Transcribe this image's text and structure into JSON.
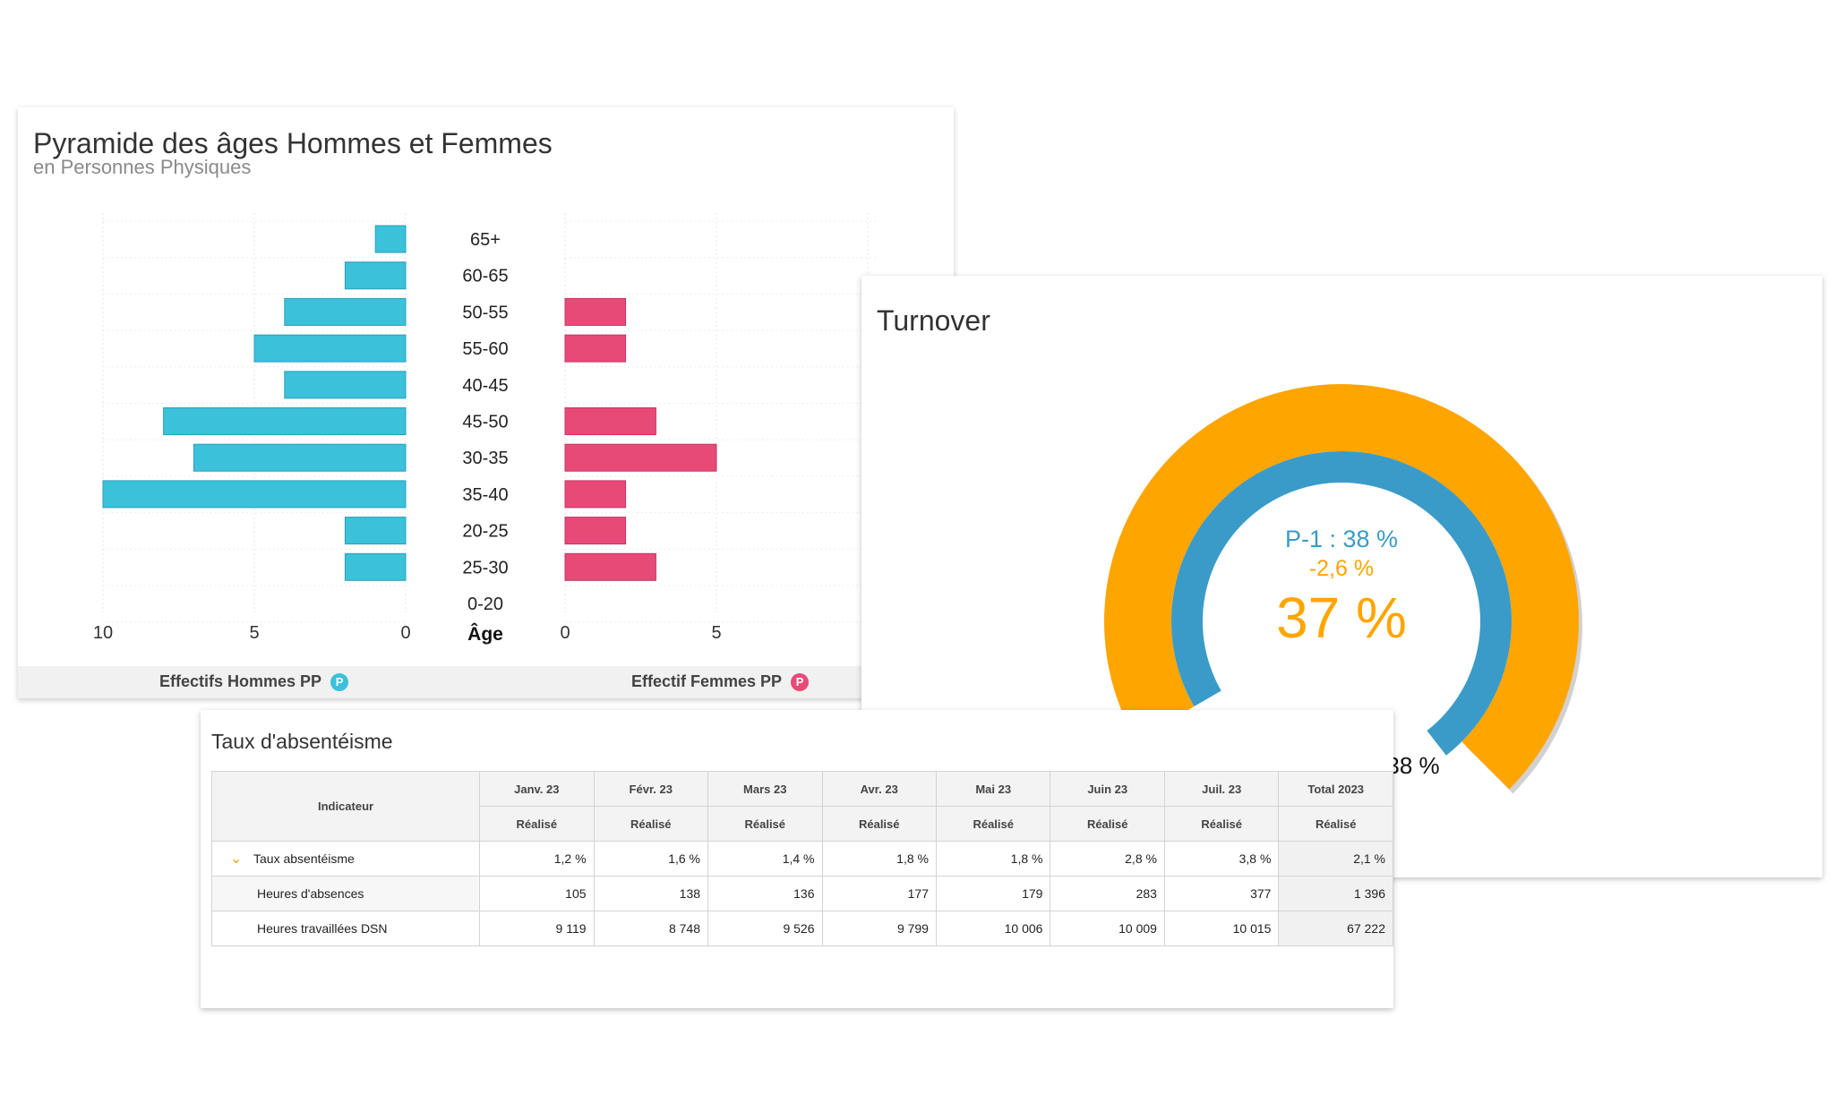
{
  "pyramid": {
    "title": "Pyramide des âges Hommes et Femmes",
    "subtitle": "en Personnes Physiques",
    "legend_men": "Effectifs Hommes PP",
    "legend_women": "Effectif Femmes PP",
    "badge": "P",
    "colors": {
      "men": "#3bc1da",
      "women": "#e84a78"
    }
  },
  "chart_data": [
    {
      "type": "bar",
      "orientation": "horizontal",
      "categories": [
        "65+",
        "60-65",
        "50-55",
        "55-60",
        "40-45",
        "45-50",
        "30-35",
        "35-40",
        "20-25",
        "25-30",
        "0-20"
      ],
      "category_label": "Âge",
      "series": [
        {
          "name": "Effectifs Hommes PP",
          "values": [
            1,
            2,
            4,
            5,
            4,
            8,
            7,
            10,
            2,
            2,
            0
          ]
        },
        {
          "name": "Effectif Femmes PP",
          "values": [
            0,
            0,
            2,
            2,
            0,
            3,
            5,
            2,
            2,
            3,
            0
          ]
        }
      ],
      "men_ticks": [
        10,
        5,
        0
      ],
      "women_ticks": [
        0,
        5
      ],
      "grid": true
    },
    {
      "type": "pie",
      "title": "Turnover",
      "value": 37,
      "value_label": "37 %",
      "previous_value": 38,
      "previous_label": "P-1 : 38 %",
      "delta_label": "-2,6 %",
      "outer_label": "38 %",
      "colors": {
        "current": "#ffa500",
        "previous": "#3a9bc9"
      }
    },
    {
      "type": "table",
      "title": "Taux d'absentéisme",
      "header_indicator": "Indicateur",
      "columns": [
        "Janv. 23",
        "Févr. 23",
        "Mars 23",
        "Avr. 23",
        "Mai 23",
        "Juin 23",
        "Juil. 23",
        "Total 2023"
      ],
      "subheader": "Réalisé",
      "rows": [
        {
          "label": "Taux absentéisme",
          "values": [
            "1,2 %",
            "1,6 %",
            "1,4 %",
            "1,8 %",
            "1,8 %",
            "2,8 %",
            "3,8 %",
            "2,1 %"
          ]
        },
        {
          "label": "Heures d'absences",
          "values": [
            "105",
            "138",
            "136",
            "177",
            "179",
            "283",
            "377",
            "1 396"
          ]
        },
        {
          "label": "Heures travaillées DSN",
          "values": [
            "9 119",
            "8 748",
            "9 526",
            "9 799",
            "10 006",
            "10 009",
            "10 015",
            "67 222"
          ]
        }
      ]
    }
  ]
}
